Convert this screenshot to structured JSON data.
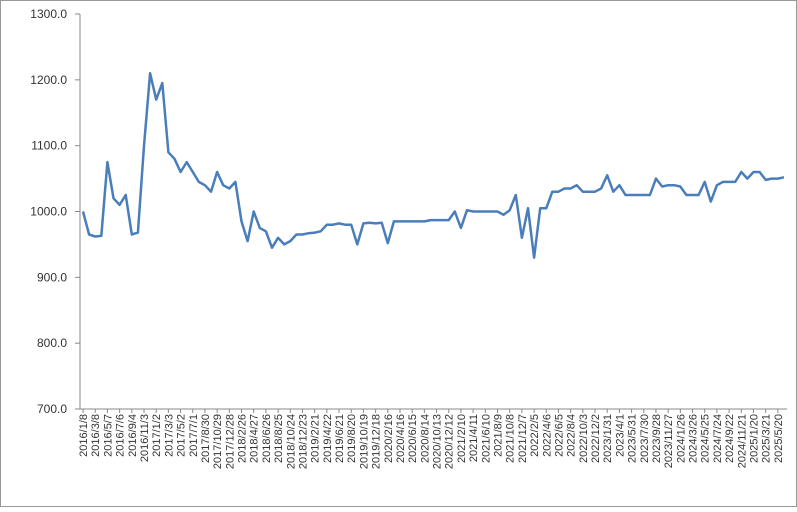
{
  "chart_data": {
    "type": "line",
    "categories": [
      "2016/1/8",
      null,
      "2016/3/8",
      null,
      "2016/5/7",
      null,
      "2016/7/6",
      null,
      "2016/9/4",
      null,
      "2016/11/3",
      null,
      "2017/1/2",
      null,
      "2017/3/3",
      null,
      "2017/5/2",
      null,
      "2017/7/1",
      null,
      "2017/8/30",
      null,
      "2017/10/29",
      null,
      "2017/12/28",
      null,
      "2018/2/26",
      null,
      "2018/4/27",
      null,
      "2018/6/26",
      null,
      "2018/8/25",
      null,
      "2018/10/24",
      null,
      "2018/12/23",
      null,
      "2019/2/21",
      null,
      "2019/4/22",
      null,
      "2019/6/21",
      null,
      "2019/8/20",
      null,
      "2019/10/19",
      null,
      "2019/12/18",
      null,
      "2020/2/16",
      null,
      "2020/4/16",
      null,
      "2020/6/15",
      null,
      "2020/8/14",
      null,
      "2020/10/13",
      null,
      "2020/12/12",
      null,
      "2021/2/10",
      null,
      "2021/4/11",
      null,
      "2021/6/10",
      null,
      "2021/8/9",
      null,
      "2021/10/8",
      null,
      "2021/12/7",
      null,
      "2022/2/5",
      null,
      "2022/4/6",
      null,
      "2022/6/5",
      null,
      "2022/8/4",
      null,
      "2022/10/3",
      null,
      "2022/12/2",
      null,
      "2023/1/31",
      null,
      "2023/4/1",
      null,
      "2023/5/31",
      null,
      "2023/7/30",
      null,
      "2023/9/28",
      null,
      "2023/11/27",
      null,
      "2024/1/26",
      null,
      "2024/3/26",
      null,
      "2024/5/25",
      null,
      "2024/7/24",
      null,
      "2024/9/22",
      null,
      "2024/11/21",
      null,
      "2025/1/20",
      null,
      "2025/3/21",
      null,
      "2025/5/20",
      null
    ],
    "values": [
      1000,
      965,
      962,
      963,
      1075,
      1020,
      1010,
      1025,
      965,
      968,
      1100,
      1210,
      1170,
      1195,
      1090,
      1080,
      1060,
      1075,
      1060,
      1045,
      1040,
      1030,
      1060,
      1040,
      1035,
      1045,
      985,
      955,
      1000,
      975,
      970,
      945,
      960,
      950,
      955,
      965,
      965,
      967,
      968,
      970,
      980,
      980,
      982,
      980,
      980,
      950,
      982,
      983,
      982,
      983,
      952,
      985,
      985,
      985,
      985,
      985,
      985,
      987,
      987,
      987,
      987,
      1000,
      975,
      1002,
      1000,
      1000,
      1000,
      1000,
      1000,
      995,
      1002,
      1025,
      960,
      1005,
      930,
      1005,
      1005,
      1030,
      1030,
      1035,
      1035,
      1040,
      1030,
      1030,
      1030,
      1035,
      1055,
      1030,
      1040,
      1025,
      1025,
      1025,
      1025,
      1025,
      1050,
      1038,
      1040,
      1040,
      1038,
      1025,
      1025,
      1025,
      1045,
      1015,
      1040,
      1045,
      1045,
      1045,
      1060,
      1050,
      1060,
      1060,
      1048,
      1050,
      1050,
      1052
    ],
    "color": "#4a7ebb",
    "ylim": [
      700,
      1300
    ],
    "yticks": [
      {
        "value": 700,
        "label": "700.0"
      },
      {
        "value": 800,
        "label": "800.0"
      },
      {
        "value": 900,
        "label": "900.0"
      },
      {
        "value": 1000,
        "label": "1000.0"
      },
      {
        "value": 1100,
        "label": "1100.0"
      },
      {
        "value": 1200,
        "label": "1200.0"
      },
      {
        "value": 1300,
        "label": "1300.0"
      }
    ],
    "grid": false
  }
}
